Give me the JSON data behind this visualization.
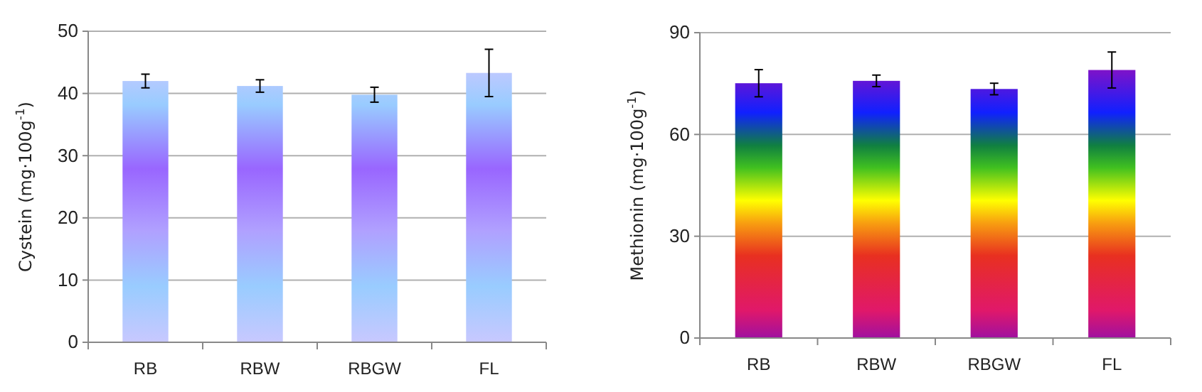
{
  "chart_data": [
    {
      "type": "bar",
      "ylabel": "Cystein (mg·100g$^{-1}$)",
      "categories": [
        "RB",
        "RBW",
        "RBGW",
        "FL"
      ],
      "values": [
        42,
        41.2,
        39.8,
        43.3
      ],
      "errors": [
        1.1,
        1,
        1.2,
        3.8
      ],
      "color": "#9966ff",
      "ylim": [
        0,
        50
      ],
      "yticks": [
        0,
        10,
        20,
        30,
        40,
        50
      ],
      "grid": "y"
    },
    {
      "type": "bar",
      "ylabel": "Methionin (mg·100g$^{-1}$)",
      "categories": [
        "RB",
        "RBW",
        "RBGW",
        "FL"
      ],
      "values": [
        75.1,
        75.8,
        73.4,
        79
      ],
      "errors": [
        4,
        1.7,
        1.7,
        5.3
      ],
      "ylim": [
        0,
        90
      ],
      "yticks": [
        0,
        30,
        60,
        90
      ],
      "grid": "y"
    }
  ]
}
